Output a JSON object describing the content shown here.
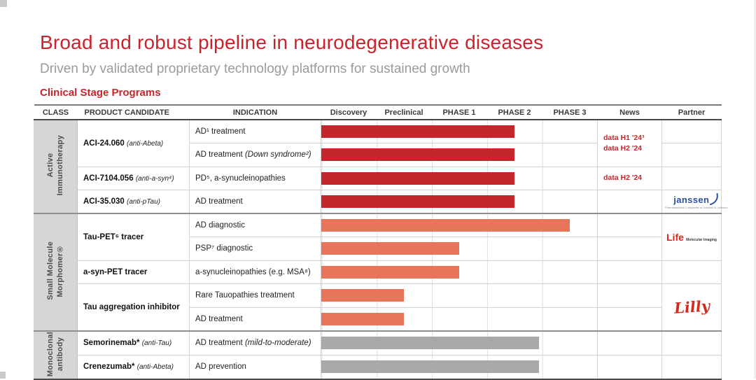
{
  "page": {
    "title": "Broad and robust pipeline in neurodegenerative diseases",
    "subtitle": "Driven by validated proprietary technology platforms for sustained growth",
    "section_label": "Clinical Stage Programs"
  },
  "colors": {
    "red": "#C4262E",
    "orange": "#E8745A",
    "gray": "#A8A8A8",
    "accent": "#C9232B"
  },
  "table_header": {
    "class": "CLASS",
    "product": "PRODUCT CANDIDATE",
    "indication": "INDICATION",
    "phases": [
      "Discovery",
      "Preclinical",
      "PHASE 1",
      "PHASE 2",
      "PHASE 3"
    ],
    "news": "News",
    "partner": "Partner"
  },
  "class_groups": [
    {
      "line1": "Active",
      "line2": "Immunotherapy"
    },
    {
      "line1": "Small Molecule",
      "line2": "Morphomer®"
    },
    {
      "line1": "Monoclonal",
      "line2": "antibody"
    }
  ],
  "products": {
    "aci24": {
      "name": "ACI-24.060",
      "tag": "(anti-Abeta)"
    },
    "aci7104": {
      "name": "ACI-7104.056",
      "tag": "(anti-a-syn⁴)"
    },
    "aci35": {
      "name": "ACI-35.030",
      "tag": "(anti-pTau)"
    },
    "taupet": {
      "name": "Tau-PET⁶ tracer",
      "tag": ""
    },
    "asynpet": {
      "name": "a-syn-PET tracer",
      "tag": ""
    },
    "tauagg": {
      "name": "Tau aggregation inhibitor",
      "tag": ""
    },
    "semorinemab": {
      "name": "Semorinemab*",
      "tag": "(anti-Tau)"
    },
    "crenezumab": {
      "name": "Crenezumab*",
      "tag": "(anti-Abeta)"
    }
  },
  "news": {
    "aci24_line1": "data H1 '24³",
    "aci24_line2": "data H2 '24",
    "aci7104_line1": "data H2 '24"
  },
  "partners": {
    "janssen": {
      "wordmark": "janssen",
      "tagline": "Pharmaceutical Companies of Johnson & Johnson"
    },
    "life": {
      "wordmark": "Life",
      "suffix": "Molecular Imaging"
    },
    "lilly": {
      "wordmark": "Lilly"
    }
  },
  "chart_data": {
    "type": "bar",
    "title": "Clinical Stage Programs",
    "stages": [
      "Discovery",
      "Preclinical",
      "PHASE 1",
      "PHASE 2",
      "PHASE 3"
    ],
    "stage_span_pct": 20,
    "xlim_pct": [
      0,
      100
    ],
    "rows": [
      {
        "product": "ACI-24.060 (anti-Abeta)",
        "indication": "AD¹ treatment",
        "tag": "",
        "bar_color": "red",
        "bar_pct": 70,
        "end_stage": "PHASE 2"
      },
      {
        "product": "ACI-24.060 (anti-Abeta)",
        "indication": "AD treatment",
        "tag": "(Down syndrome²)",
        "bar_color": "red",
        "bar_pct": 70,
        "end_stage": "PHASE 2"
      },
      {
        "product": "ACI-7104.056 (anti-a-syn⁴)",
        "indication": "PD⁵, a-synucleinopathies",
        "tag": "",
        "bar_color": "red",
        "bar_pct": 70,
        "end_stage": "PHASE 2"
      },
      {
        "product": "ACI-35.030 (anti-pTau)",
        "indication": "AD treatment",
        "tag": "",
        "bar_color": "red",
        "bar_pct": 70,
        "end_stage": "PHASE 2"
      },
      {
        "product": "Tau-PET⁶ tracer",
        "indication": "AD diagnostic",
        "tag": "",
        "bar_color": "orange",
        "bar_pct": 90,
        "end_stage": "PHASE 3"
      },
      {
        "product": "Tau-PET⁶ tracer",
        "indication": "PSP⁷ diagnostic",
        "tag": "",
        "bar_color": "orange",
        "bar_pct": 50,
        "end_stage": "PHASE 1"
      },
      {
        "product": "a-syn-PET tracer",
        "indication": "a-synucleinopathies (e.g. MSA⁸)",
        "tag": "",
        "bar_color": "orange",
        "bar_pct": 50,
        "end_stage": "PHASE 1"
      },
      {
        "product": "Tau aggregation inhibitor",
        "indication": "Rare Tauopathies treatment",
        "tag": "",
        "bar_color": "orange",
        "bar_pct": 30,
        "end_stage": "Preclinical"
      },
      {
        "product": "Tau aggregation inhibitor",
        "indication": "AD treatment",
        "tag": "",
        "bar_color": "orange",
        "bar_pct": 30,
        "end_stage": "Preclinical"
      },
      {
        "product": "Semorinemab* (anti-Tau)",
        "indication": "AD treatment",
        "tag": "(mild-to-moderate)",
        "bar_color": "gray",
        "bar_pct": 79,
        "end_stage": "PHASE 2"
      },
      {
        "product": "Crenezumab* (anti-Abeta)",
        "indication": "AD prevention",
        "tag": "",
        "bar_color": "gray",
        "bar_pct": 79,
        "end_stage": "PHASE 2"
      }
    ]
  }
}
